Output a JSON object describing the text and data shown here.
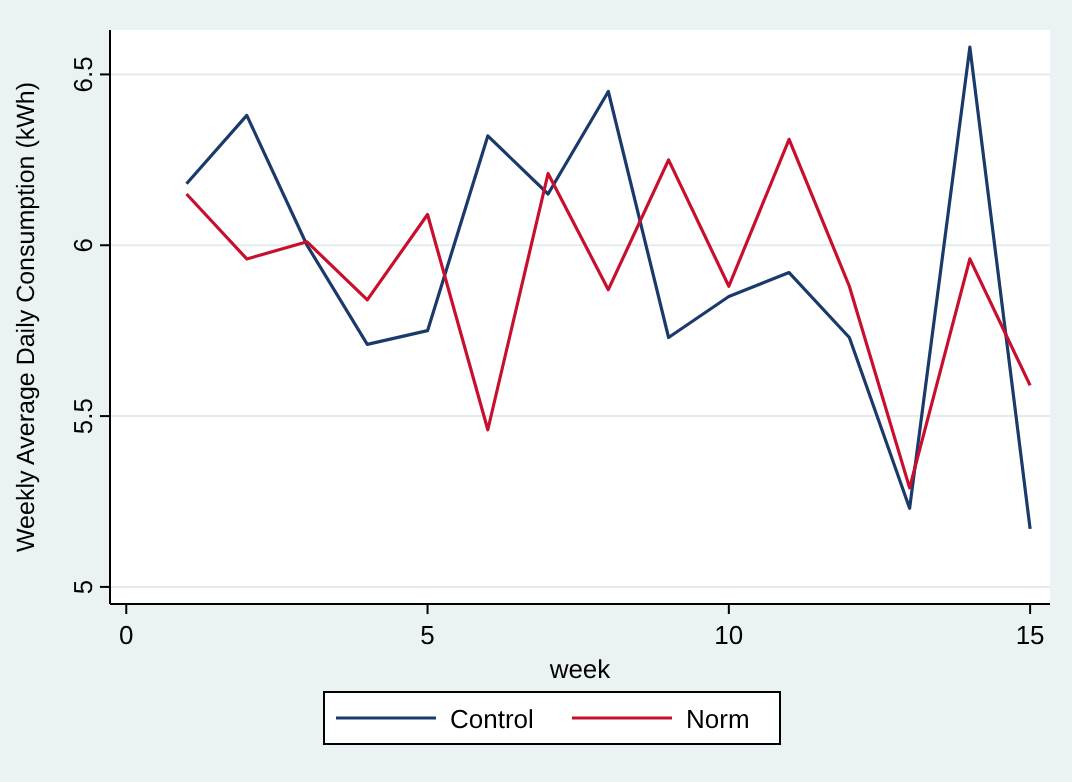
{
  "chart_data": {
    "type": "line",
    "xlabel": "week",
    "ylabel": "Weekly Average Daily Consumption (kWh)",
    "x": [
      1,
      2,
      3,
      4,
      5,
      6,
      7,
      8,
      9,
      10,
      11,
      12,
      13,
      14,
      15
    ],
    "series": [
      {
        "name": "Control",
        "color": "#1a3a6b",
        "values": [
          6.18,
          6.38,
          6.0,
          5.71,
          5.75,
          6.32,
          6.15,
          6.45,
          5.73,
          5.85,
          5.92,
          5.73,
          5.23,
          6.58,
          5.17
        ]
      },
      {
        "name": "Norm",
        "color": "#c8102e",
        "values": [
          6.15,
          5.96,
          6.01,
          5.84,
          6.09,
          5.46,
          6.21,
          5.87,
          6.25,
          5.88,
          6.31,
          5.88,
          5.29,
          5.96,
          5.59
        ]
      }
    ],
    "xlim": [
      -0.27,
      15.33
    ],
    "ylim": [
      4.95,
      6.63
    ],
    "xticks": [
      0,
      5,
      10,
      15
    ],
    "yticks": [
      5,
      5.5,
      6,
      6.5
    ],
    "grid": "y",
    "legend": "bottom",
    "line_style": "solid",
    "marker": "none"
  }
}
